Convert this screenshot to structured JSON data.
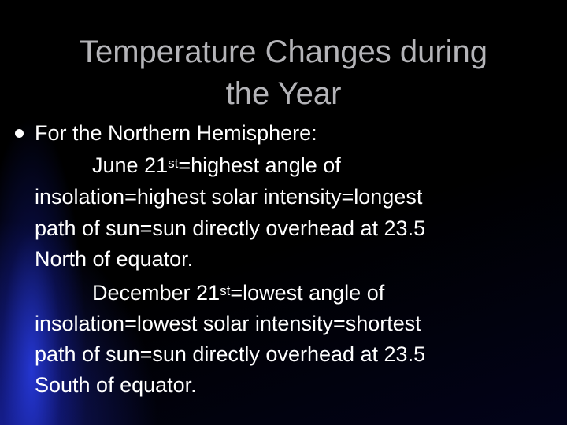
{
  "title": {
    "lines": [
      "Temperature Changes during",
      "the Year"
    ]
  },
  "body": {
    "bullet": "For the Northern Hemisphere:",
    "paragraphs": [
      {
        "first": {
          "pre": "June 21",
          "sup": "st",
          "post": "=highest angle of"
        },
        "lines": [
          "insolation=highest solar intensity=longest",
          "path of sun=sun directly overhead at 23.5",
          "North of equator."
        ]
      },
      {
        "first": {
          "pre": "December 21",
          "sup": "st",
          "post": "=lowest angle of"
        },
        "lines": [
          "insolation=lowest solar intensity=shortest",
          "path of sun=sun directly overhead at 23.5",
          "South of equator."
        ]
      }
    ]
  }
}
